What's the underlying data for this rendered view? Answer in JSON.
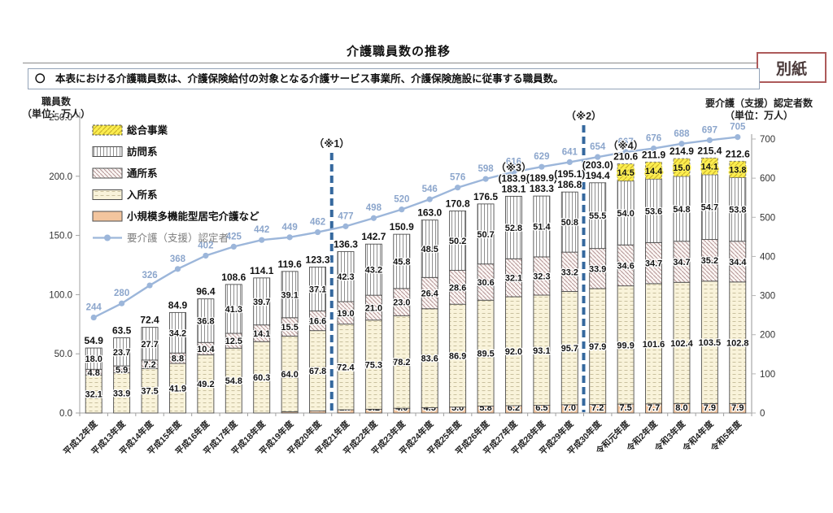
{
  "page": {
    "tag": "別紙"
  },
  "header": {
    "title": "介護職員数の推移"
  },
  "note": {
    "text": "〇　本表における介護職員数は、介護保険給付の対象となる介護サービス事業所、介護保険施設に従事する職員数。"
  },
  "axis_left": {
    "line1": "職員数",
    "line2": "（単位：万人）"
  },
  "axis_right": {
    "line1": "要介護（支援）認定者数",
    "line2": "（単位：万人）"
  },
  "colors": {
    "line": "#9cb6da",
    "line_label": "#8ca6cc",
    "dashed_marker": "#35689e",
    "sogo_yellow": "#fcee4f",
    "shokibo_peach": "#f3c59e",
    "tag_border": "#ad5a5a"
  },
  "chart_data": {
    "type": "bar",
    "subtype": "stacked-bars-with-line-overlay",
    "categories": [
      "平成12年度",
      "平成13年度",
      "平成14年度",
      "平成15年度",
      "平成16年度",
      "平成17年度",
      "平成18年度",
      "平成19年度",
      "平成20年度",
      "平成21年度",
      "平成22年度",
      "平成23年度",
      "平成24年度",
      "平成25年度",
      "平成26年度",
      "平成27年度",
      "平成28年度",
      "平成29年度",
      "平成30年度",
      "令和元年度",
      "令和2年度",
      "令和3年度",
      "令和4年度",
      "令和5年度"
    ],
    "stack_order_bottom_to_top": [
      "shokibo",
      "nyusho",
      "tsusho",
      "homon",
      "sogo"
    ],
    "series": [
      {
        "id": "sogo",
        "name": "総合事業",
        "values": [
          null,
          null,
          null,
          null,
          null,
          null,
          null,
          null,
          null,
          null,
          null,
          null,
          null,
          null,
          null,
          null,
          null,
          null,
          null,
          14.5,
          14.4,
          15.0,
          14.1,
          13.8
        ]
      },
      {
        "id": "homon",
        "name": "訪問系",
        "values": [
          18.0,
          23.7,
          27.7,
          34.2,
          36.8,
          41.3,
          39.7,
          39.1,
          37.1,
          42.3,
          43.2,
          45.8,
          48.5,
          50.2,
          50.7,
          52.8,
          51.4,
          50.8,
          55.5,
          54.0,
          53.6,
          54.8,
          54.7,
          53.8
        ]
      },
      {
        "id": "tsusho",
        "name": "通所系",
        "values": [
          4.8,
          5.9,
          7.2,
          8.8,
          10.4,
          12.5,
          14.1,
          15.5,
          16.6,
          19.0,
          21.0,
          23.0,
          26.4,
          28.6,
          30.6,
          32.1,
          32.3,
          33.2,
          33.9,
          34.6,
          34.7,
          34.7,
          35.2,
          34.4
        ]
      },
      {
        "id": "nyusho",
        "name": "入所系",
        "values": [
          32.1,
          33.9,
          37.5,
          41.9,
          49.2,
          54.8,
          60.3,
          64.0,
          67.8,
          72.4,
          75.3,
          78.2,
          83.6,
          86.9,
          89.5,
          92.0,
          93.1,
          95.7,
          97.9,
          99.9,
          101.6,
          102.4,
          103.5,
          102.8
        ]
      },
      {
        "id": "shokibo",
        "name": "小規模多機能型居宅介護など",
        "values": [
          null,
          null,
          null,
          null,
          null,
          null,
          null,
          1.0,
          1.8,
          2.7,
          3.2,
          4.0,
          4.5,
          5.0,
          5.8,
          6.2,
          6.5,
          7.0,
          7.2,
          7.5,
          7.7,
          8.0,
          7.9,
          7.9
        ]
      }
    ],
    "totals": [
      "54.9",
      "63.5",
      "72.4",
      "84.9",
      "96.4",
      "108.6",
      "114.1",
      "119.6",
      "123.3",
      "136.3",
      "142.7",
      "150.9",
      "163.0",
      "170.8",
      "176.5",
      "183.1",
      "183.3",
      "186.8",
      "194.4",
      "210.6",
      "211.9",
      "214.9",
      "215.4",
      "212.6"
    ],
    "totals_incl_sogo": {
      "15": "(183.9)",
      "16": "(189.9)",
      "17": "(195.1)",
      "18": "(203.0)"
    },
    "line": {
      "name": "要介護（支援）認定者",
      "values": [
        244,
        280,
        326,
        368,
        402,
        425,
        442,
        449,
        462,
        477,
        498,
        520,
        546,
        576,
        598,
        616,
        629,
        641,
        654,
        667,
        676,
        688,
        697,
        705
      ]
    },
    "left_axis": {
      "ticks": [
        "250.0",
        "200.0",
        "150.0",
        "100.0",
        "50.0",
        "0.0"
      ],
      "max": 250
    },
    "right_axis": {
      "ticks": [
        700,
        600,
        500,
        400,
        300,
        200,
        100,
        0
      ],
      "max": 700
    },
    "markers": [
      {
        "label": "（※1）",
        "boundary": 9
      },
      {
        "label": "（※2）",
        "boundary": 18
      }
    ],
    "point_notes": [
      {
        "label": "（※3）",
        "index": 15
      },
      {
        "label": "（※4）",
        "index": 19
      }
    ],
    "legend": [
      {
        "key": "sogo",
        "label": "総合事業"
      },
      {
        "key": "homon",
        "label": "訪問系"
      },
      {
        "key": "tsusho",
        "label": "通所系"
      },
      {
        "key": "nyusho",
        "label": "入所系"
      },
      {
        "key": "shokibo",
        "label": "小規模多機能型居宅介護など"
      },
      {
        "key": "line",
        "label": "要介護（支援）認定者"
      }
    ]
  }
}
